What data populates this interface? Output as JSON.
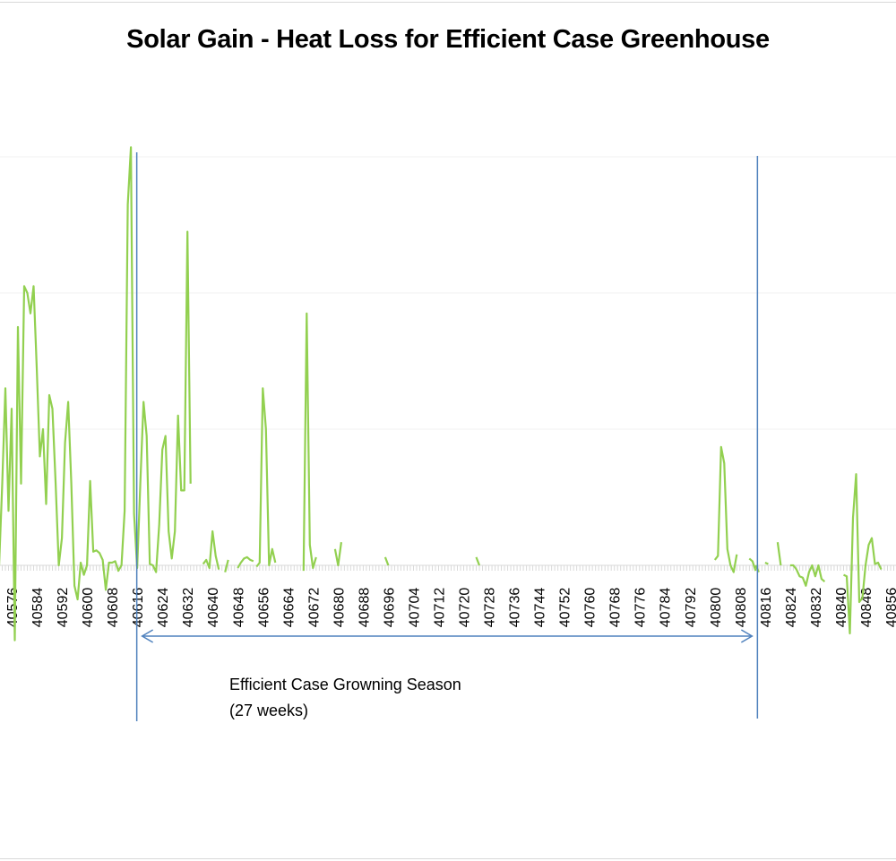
{
  "chart_data": {
    "type": "line",
    "title": "Solar Gain - Heat Loss for Efficient Case Greenhouse",
    "xlabel": "",
    "ylabel": "",
    "x_tick_labels": [
      "40576",
      "40584",
      "40592",
      "40600",
      "40608",
      "40616",
      "40624",
      "40632",
      "40640",
      "40648",
      "40656",
      "40664",
      "40672",
      "40680",
      "40688",
      "40696",
      "40704",
      "40712",
      "40720",
      "40728",
      "40736",
      "40744",
      "40752",
      "40760",
      "40768",
      "40776",
      "40784",
      "40792",
      "40800",
      "40808",
      "40816",
      "40824",
      "40832",
      "40840",
      "40848",
      "40856"
    ],
    "xlim": [
      40572,
      40858
    ],
    "ylim": [
      -0.6,
      3.1
    ],
    "grid": true,
    "legend": "none",
    "series_color": "#92D050",
    "marker_color": "#4F81BD",
    "series": [
      {
        "name": "Solar Gain - Heat Loss",
        "points": [
          [
            40572,
            0.0
          ],
          [
            40573,
            0.6
          ],
          [
            40574,
            1.3
          ],
          [
            40575,
            0.4
          ],
          [
            40576,
            1.15
          ],
          [
            40577,
            -0.55
          ],
          [
            40578,
            1.75
          ],
          [
            40579,
            0.6
          ],
          [
            40580,
            2.05
          ],
          [
            40581,
            2.0
          ],
          [
            40582,
            1.85
          ],
          [
            40583,
            2.05
          ],
          [
            40584,
            1.45
          ],
          [
            40585,
            0.8
          ],
          [
            40586,
            1.0
          ],
          [
            40587,
            0.45
          ],
          [
            40588,
            1.25
          ],
          [
            40589,
            1.15
          ],
          [
            40590,
            0.6
          ],
          [
            40591,
            0.0
          ],
          [
            40592,
            0.2
          ],
          [
            40593,
            0.9
          ],
          [
            40594,
            1.2
          ],
          [
            40595,
            0.6
          ],
          [
            40596,
            -0.15
          ],
          [
            40597,
            -0.25
          ],
          [
            40598,
            0.02
          ],
          [
            40599,
            -0.07
          ],
          [
            40600,
            0.0
          ],
          [
            40601,
            0.62
          ],
          [
            40602,
            0.1
          ],
          [
            40603,
            0.11
          ],
          [
            40604,
            0.09
          ],
          [
            40605,
            0.04
          ],
          [
            40606,
            -0.18
          ],
          [
            40607,
            0.02
          ],
          [
            40608,
            0.02
          ],
          [
            40609,
            0.03
          ],
          [
            40610,
            -0.04
          ],
          [
            40611,
            0.0
          ],
          [
            40612,
            0.4
          ],
          [
            40613,
            2.65
          ],
          [
            40614,
            3.07
          ],
          [
            40615,
            0.38
          ],
          [
            40616,
            -0.02
          ],
          [
            40617,
            0.6
          ],
          [
            40618,
            1.2
          ],
          [
            40619,
            0.95
          ],
          [
            40620,
            0.01
          ],
          [
            40621,
            0.0
          ],
          [
            40622,
            -0.05
          ],
          [
            40623,
            0.3
          ],
          [
            40624,
            0.85
          ],
          [
            40625,
            0.95
          ],
          [
            40626,
            0.25
          ],
          [
            40627,
            0.05
          ],
          [
            40628,
            0.25
          ],
          [
            40629,
            1.1
          ],
          [
            40630,
            0.55
          ],
          [
            40631,
            0.55
          ],
          [
            40632,
            2.45
          ],
          [
            40633,
            0.6
          ]
        ],
        "segments_after_gap": [
          [
            [
              40637,
              0.01
            ],
            [
              40638,
              0.04
            ],
            [
              40639,
              -0.02
            ],
            [
              40640,
              0.25
            ],
            [
              40641,
              0.07
            ],
            [
              40642,
              -0.03
            ]
          ],
          [
            [
              40644,
              -0.05
            ],
            [
              40645,
              0.04
            ]
          ],
          [
            [
              40648,
              -0.02
            ],
            [
              40649,
              0.02
            ],
            [
              40650,
              0.05
            ],
            [
              40651,
              0.06
            ],
            [
              40652,
              0.04
            ],
            [
              40653,
              0.03
            ]
          ],
          [
            [
              40654,
              -0.01
            ],
            [
              40655,
              0.02
            ],
            [
              40656,
              1.3
            ],
            [
              40657,
              1.0
            ],
            [
              40658,
              0.0
            ],
            [
              40659,
              0.12
            ],
            [
              40660,
              0.02
            ]
          ],
          [
            [
              40669,
              -0.04
            ],
            [
              40670,
              1.85
            ],
            [
              40671,
              0.15
            ],
            [
              40672,
              -0.02
            ],
            [
              40673,
              0.06
            ]
          ],
          [
            [
              40679,
              0.12
            ],
            [
              40680,
              0.0
            ],
            [
              40681,
              0.17
            ]
          ],
          [
            [
              40695,
              0.06
            ],
            [
              40696,
              0.0
            ]
          ],
          [
            [
              40724,
              0.06
            ],
            [
              40725,
              0.0
            ]
          ],
          [
            [
              40800,
              0.04
            ],
            [
              40801,
              0.07
            ],
            [
              40802,
              0.87
            ],
            [
              40803,
              0.75
            ],
            [
              40804,
              0.12
            ],
            [
              40805,
              0.0
            ],
            [
              40806,
              -0.05
            ],
            [
              40807,
              0.08
            ]
          ],
          [
            [
              40811,
              0.05
            ],
            [
              40812,
              0.03
            ],
            [
              40813,
              -0.04
            ]
          ],
          [
            [
              40813,
              0.0
            ],
            [
              40814,
              -0.05
            ]
          ],
          [
            [
              40816,
              0.02
            ],
            [
              40817,
              0.01
            ]
          ],
          [
            [
              40820,
              0.17
            ],
            [
              40821,
              0.0
            ]
          ],
          [
            [
              40824,
              0.0
            ],
            [
              40825,
              0.0
            ],
            [
              40826,
              -0.03
            ],
            [
              40827,
              -0.08
            ],
            [
              40828,
              -0.09
            ],
            [
              40829,
              -0.15
            ],
            [
              40830,
              -0.05
            ],
            [
              40831,
              0.0
            ],
            [
              40832,
              -0.08
            ],
            [
              40833,
              0.0
            ],
            [
              40834,
              -0.1
            ],
            [
              40835,
              -0.12
            ]
          ],
          [
            [
              40841,
              -0.07
            ],
            [
              40842,
              -0.08
            ],
            [
              40843,
              -0.5
            ],
            [
              40844,
              0.35
            ],
            [
              40845,
              0.67
            ],
            [
              40846,
              -0.27
            ],
            [
              40847,
              -0.24
            ],
            [
              40848,
              0.0
            ],
            [
              40849,
              0.15
            ],
            [
              40850,
              0.2
            ],
            [
              40851,
              0.01
            ],
            [
              40852,
              0.02
            ],
            [
              40853,
              -0.03
            ]
          ]
        ]
      }
    ],
    "annotations": {
      "start_marker_x": 40617,
      "end_marker_x": 40813,
      "arrow": "double-headed between markers",
      "label_line1": "Efficient Case Growning Season",
      "label_line2": "(27 weeks)"
    }
  }
}
